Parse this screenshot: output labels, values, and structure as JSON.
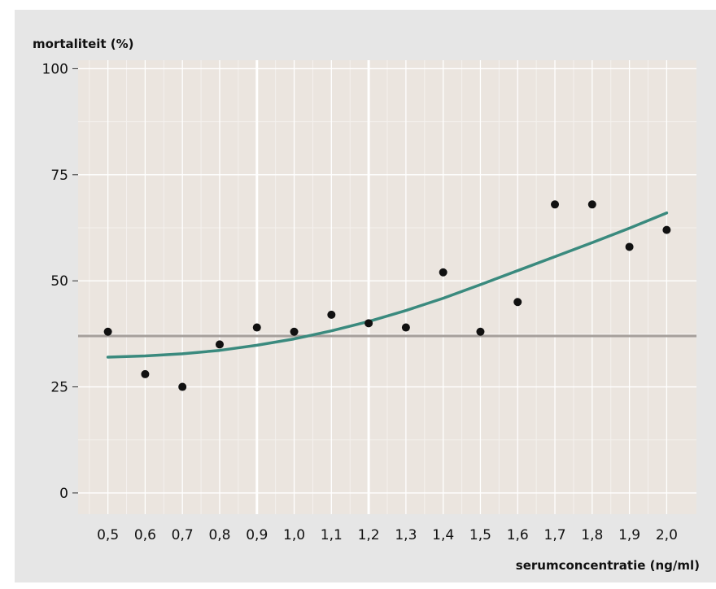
{
  "chart_data": {
    "type": "scatter",
    "ylabel": "mortaliteit (%)",
    "xlabel": "serumconcentratie (ng/ml)",
    "x_ticks": [
      "0,5",
      "0,6",
      "0,7",
      "0,8",
      "0,9",
      "1,0",
      "1,1",
      "1,2",
      "1,3",
      "1,4",
      "1,5",
      "1,6",
      "1,7",
      "1,8",
      "1,9",
      "2,0"
    ],
    "y_ticks": [
      "0",
      "25",
      "50",
      "75",
      "100"
    ],
    "xlim": [
      0.42,
      2.08
    ],
    "ylim": [
      -5,
      102
    ],
    "grid": true,
    "points": {
      "x": [
        0.5,
        0.6,
        0.7,
        0.8,
        0.9,
        1.0,
        1.1,
        1.2,
        1.3,
        1.4,
        1.5,
        1.6,
        1.7,
        1.8,
        1.9,
        2.0
      ],
      "y": [
        38,
        28,
        25,
        35,
        39,
        38,
        42,
        40,
        39,
        52,
        38,
        45,
        68,
        68,
        58,
        62
      ]
    },
    "fit_curve": {
      "x": [
        0.5,
        0.6,
        0.7,
        0.8,
        0.9,
        1.0,
        1.1,
        1.2,
        1.3,
        1.4,
        1.5,
        1.6,
        1.7,
        1.8,
        1.9,
        2.0
      ],
      "y": [
        32.0,
        32.3,
        32.8,
        33.6,
        34.8,
        36.3,
        38.2,
        40.4,
        43.0,
        45.9,
        49.1,
        52.4,
        55.7,
        59.0,
        62.4,
        66.0
      ]
    },
    "reference_line_y": 37,
    "colors": {
      "points": "#111111",
      "fit": "#3a8a7e",
      "reference": "#a6a09c",
      "plot_bg": "#ebe5df",
      "frame_bg": "#e6e6e6"
    }
  }
}
